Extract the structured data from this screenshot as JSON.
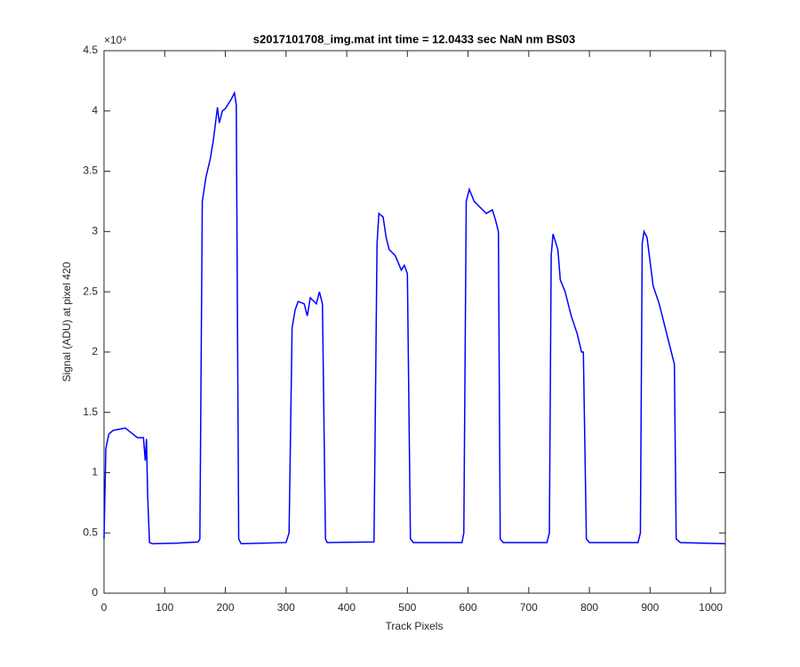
{
  "chart_data": {
    "type": "line",
    "title": "s2017101708_img.mat int time = 12.0433 sec  NaN nm BS03",
    "x_label": "Track Pixels",
    "y_label": "Signal (ADU) at pixel 420",
    "y_exponent": "×10⁴",
    "color": "#0000ff",
    "xlim": [
      0,
      1024
    ],
    "ylim": [
      0,
      4.5
    ],
    "xticks": [
      0,
      100,
      200,
      300,
      400,
      500,
      600,
      700,
      800,
      900,
      1000
    ],
    "yticks": [
      0,
      0.5,
      1,
      1.5,
      2,
      2.5,
      3,
      3.5,
      4,
      4.5
    ],
    "x": [
      0,
      3,
      8,
      15,
      25,
      35,
      45,
      55,
      65,
      68,
      70,
      72,
      75,
      80,
      120,
      155,
      158,
      162,
      168,
      175,
      180,
      187,
      190,
      195,
      200,
      210,
      215,
      218,
      222,
      226,
      300,
      305,
      310,
      315,
      320,
      330,
      335,
      340,
      350,
      355,
      360,
      365,
      368,
      445,
      450,
      453,
      460,
      465,
      470,
      480,
      490,
      495,
      500,
      505,
      510,
      590,
      593,
      597,
      602,
      610,
      620,
      630,
      640,
      645,
      650,
      653,
      658,
      730,
      734,
      737,
      740,
      748,
      752,
      760,
      770,
      780,
      787,
      790,
      795,
      800,
      880,
      884,
      887,
      890,
      895,
      905,
      915,
      925,
      935,
      940,
      943,
      950,
      1024
    ],
    "values": [
      0.45,
      1.2,
      1.32,
      1.35,
      1.36,
      1.37,
      1.33,
      1.29,
      1.29,
      1.1,
      1.28,
      0.8,
      0.42,
      0.41,
      0.415,
      0.425,
      0.45,
      3.25,
      3.45,
      3.6,
      3.75,
      4.03,
      3.9,
      4.0,
      4.02,
      4.1,
      4.15,
      4.05,
      0.45,
      0.41,
      0.42,
      0.5,
      2.2,
      2.35,
      2.42,
      2.4,
      2.3,
      2.45,
      2.4,
      2.5,
      2.4,
      0.45,
      0.42,
      0.425,
      2.9,
      3.15,
      3.12,
      2.95,
      2.85,
      2.8,
      2.68,
      2.72,
      2.65,
      0.45,
      0.42,
      0.42,
      0.5,
      3.25,
      3.35,
      3.25,
      3.2,
      3.15,
      3.18,
      3.1,
      3.0,
      0.45,
      0.42,
      0.42,
      0.5,
      2.8,
      2.98,
      2.85,
      2.6,
      2.5,
      2.3,
      2.15,
      2.0,
      2.0,
      0.45,
      0.42,
      0.42,
      0.5,
      2.9,
      3.0,
      2.95,
      2.55,
      2.4,
      2.2,
      2.0,
      1.9,
      0.45,
      0.42,
      0.41
    ]
  }
}
